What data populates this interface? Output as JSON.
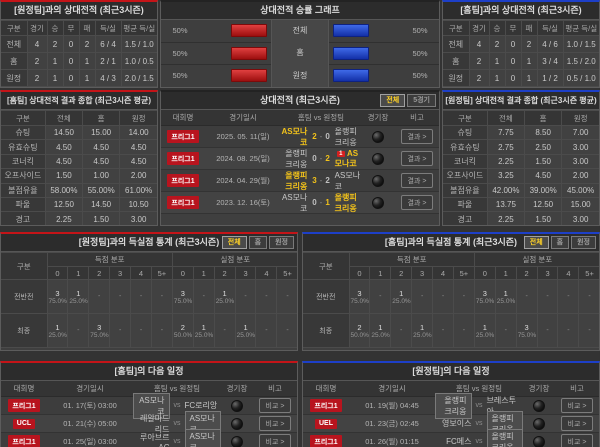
{
  "colors": {
    "home_accent": "#c41418",
    "away_accent": "#1d3fc8",
    "win_text": "#f2c21a",
    "bar_red": "#c22020",
    "bar_blue": "#2646c8"
  },
  "h2h_left": {
    "title": "[원정팀]과의 상대전적 (최근3시즌)",
    "columns": [
      "구분",
      "경기",
      "승",
      "무",
      "패",
      "득/실",
      "평균 득/실"
    ],
    "rows": [
      [
        "전체",
        "4",
        "2",
        "0",
        "2",
        "6 / 4",
        "1.5 / 1.0"
      ],
      [
        "홈",
        "2",
        "1",
        "0",
        "1",
        "2 / 1",
        "1.0 / 0.5"
      ],
      [
        "원정",
        "2",
        "1",
        "0",
        "1",
        "4 / 3",
        "2.0 / 1.5"
      ]
    ]
  },
  "win_graph": {
    "title": "상대전적 승률 그래프",
    "rows": [
      {
        "label": "전체",
        "left_pct": "50%",
        "left_val": 50,
        "right_pct": "50%",
        "right_val": 50
      },
      {
        "label": "홈",
        "left_pct": "50%",
        "left_val": 50,
        "right_pct": "50%",
        "right_val": 50
      },
      {
        "label": "원정",
        "left_pct": "50%",
        "left_val": 50,
        "right_pct": "50%",
        "right_val": 50
      }
    ]
  },
  "h2h_right": {
    "title": "[홈팀]과의 상대전적 (최근3시즌)",
    "columns": [
      "구분",
      "경기",
      "승",
      "무",
      "패",
      "득/실",
      "평균 득/실"
    ],
    "rows": [
      [
        "전체",
        "4",
        "2",
        "0",
        "2",
        "4 / 6",
        "1.0 / 1.5"
      ],
      [
        "홈",
        "2",
        "1",
        "0",
        "1",
        "3 / 4",
        "1.5 / 2.0"
      ],
      [
        "원정",
        "2",
        "1",
        "0",
        "1",
        "1 / 2",
        "0.5 / 1.0"
      ]
    ]
  },
  "stats_left": {
    "title": "[홈팀] 상대전적 결과 종합 (최근3시즌 평균)",
    "columns": [
      "구분",
      "전체",
      "홈",
      "원정"
    ],
    "rows": [
      [
        "슈팅",
        "14.50",
        "15.00",
        "14.00"
      ],
      [
        "유효슈팅",
        "4.50",
        "4.50",
        "4.50"
      ],
      [
        "코너킥",
        "4.50",
        "4.50",
        "4.50"
      ],
      [
        "오프사이드",
        "1.50",
        "1.00",
        "2.00"
      ],
      [
        "볼점유율",
        "58.00%",
        "55.00%",
        "61.00%"
      ],
      [
        "파울",
        "12.50",
        "14.50",
        "10.50"
      ],
      [
        "경고",
        "2.25",
        "1.50",
        "3.00"
      ],
      [
        "퇴장",
        "0.25",
        "0.00",
        "0.50"
      ]
    ]
  },
  "matches": {
    "title": "상대전적 (최근3시즌)",
    "tabs": [
      "전체",
      "5경기"
    ],
    "active_tab": 0,
    "columns": [
      "대회명",
      "경기일시",
      "홈팀 vs 원정팀",
      "경기장",
      "비고"
    ],
    "action_label": "결과 >",
    "rows": [
      {
        "league": "프리그1",
        "date": "2025. 05. 11(일)",
        "home": "AS모나코",
        "home_score": "2",
        "away_score": "0",
        "away": "올랭피크리옹",
        "winner": "home",
        "red_card_side": "",
        "red_card_count": ""
      },
      {
        "league": "프리그1",
        "date": "2024. 08. 25(일)",
        "home": "올랭피크리옹",
        "home_score": "0",
        "away_score": "2",
        "away": "AS모나코",
        "winner": "away",
        "red_card_side": "away",
        "red_card_count": "1"
      },
      {
        "league": "프리그1",
        "date": "2024. 04. 29(월)",
        "home": "올랭피크리옹",
        "home_score": "3",
        "away_score": "2",
        "away": "AS모나코",
        "winner": "home",
        "red_card_side": "",
        "red_card_count": ""
      },
      {
        "league": "프리그1",
        "date": "2023. 12. 16(토)",
        "home": "AS모나코",
        "home_score": "0",
        "away_score": "1",
        "away": "올랭피크리옹",
        "winner": "away",
        "red_card_side": "",
        "red_card_count": ""
      }
    ]
  },
  "stats_right": {
    "title": "[원정팀] 상대전적 결과 종합 (최근3시즌 평균)",
    "columns": [
      "구분",
      "전체",
      "홈",
      "원정"
    ],
    "rows": [
      [
        "슈팅",
        "7.75",
        "8.50",
        "7.00"
      ],
      [
        "유효슈팅",
        "2.75",
        "2.50",
        "3.00"
      ],
      [
        "코너킥",
        "2.25",
        "1.50",
        "3.00"
      ],
      [
        "오프사이드",
        "3.25",
        "4.50",
        "2.00"
      ],
      [
        "볼점유율",
        "42.00%",
        "39.00%",
        "45.00%"
      ],
      [
        "파울",
        "13.75",
        "12.50",
        "15.00"
      ],
      [
        "경고",
        "2.25",
        "1.50",
        "3.00"
      ],
      [
        "퇴장",
        "0.00",
        "0.00",
        "0.00"
      ]
    ]
  },
  "dist_left": {
    "title": "[원정팀]과의 득실점 통계 (최근3시즌)",
    "tabs": [
      "전체",
      "홈",
      "원정"
    ],
    "active_tab": 0,
    "corner_label": "구분",
    "group_labels": [
      "득점 분포",
      "실점 분포"
    ],
    "score_cols": [
      "0",
      "1",
      "2",
      "3",
      "4",
      "5+"
    ],
    "rows": [
      {
        "label": "전반전",
        "scored": [
          [
            "3",
            "75.0%"
          ],
          [
            "1",
            "25.0%"
          ],
          "-",
          "-",
          "-",
          "-"
        ],
        "conceded": [
          [
            "3",
            "75.0%"
          ],
          "-",
          [
            "1",
            "25.0%"
          ],
          "-",
          "-",
          "-"
        ]
      },
      {
        "label": "최종",
        "scored": [
          [
            "1",
            "25.0%"
          ],
          "-",
          [
            "3",
            "75.0%"
          ],
          "-",
          "-",
          "-"
        ],
        "conceded": [
          [
            "2",
            "50.0%"
          ],
          [
            "1",
            "25.0%"
          ],
          "-",
          [
            "1",
            "25.0%"
          ],
          "-",
          "-"
        ]
      }
    ]
  },
  "dist_right": {
    "title": "[홈팀]과의 득실점 통계 (최근3시즌)",
    "tabs": [
      "전체",
      "홈",
      "원정"
    ],
    "active_tab": 0,
    "corner_label": "구분",
    "group_labels": [
      "득점 분포",
      "실점 분포"
    ],
    "score_cols": [
      "0",
      "1",
      "2",
      "3",
      "4",
      "5+"
    ],
    "rows": [
      {
        "label": "전반전",
        "scored": [
          [
            "3",
            "75.0%"
          ],
          "-",
          [
            "1",
            "25.0%"
          ],
          "-",
          "-",
          "-"
        ],
        "conceded": [
          [
            "3",
            "75.0%"
          ],
          [
            "1",
            "25.0%"
          ],
          "-",
          "-",
          "-",
          "-"
        ]
      },
      {
        "label": "최종",
        "scored": [
          [
            "2",
            "50.0%"
          ],
          [
            "1",
            "25.0%"
          ],
          "-",
          [
            "1",
            "25.0%"
          ],
          "-",
          "-"
        ],
        "conceded": [
          [
            "1",
            "25.0%"
          ],
          "-",
          [
            "3",
            "75.0%"
          ],
          "-",
          "-",
          "-"
        ]
      }
    ]
  },
  "schedule_left": {
    "title": "[홈팀]의 다음 일정",
    "columns": [
      "대회명",
      "경기일시",
      "홈팀 vs 원정팀",
      "경기장",
      "비고"
    ],
    "action_label": "비교 >",
    "rows": [
      {
        "league": "프리그1",
        "datetime": "01. 17(토) 03:00",
        "home": "AS모나코",
        "away": "FC로리앙",
        "highlight": "home"
      },
      {
        "league": "UCL",
        "datetime": "01. 21(수) 05:00",
        "home": "레알마드리드",
        "away": "AS모나코",
        "highlight": "away"
      },
      {
        "league": "프리그1",
        "datetime": "01. 25(일) 03:00",
        "home": "루아브르AC",
        "away": "AS모나코",
        "highlight": "away"
      }
    ]
  },
  "schedule_right": {
    "title": "[원정팀]의 다음 일정",
    "columns": [
      "대회명",
      "경기일시",
      "홈팀 vs 원정팀",
      "경기장",
      "비고"
    ],
    "action_label": "비교 >",
    "rows": [
      {
        "league": "프리그1",
        "datetime": "01. 19(월) 04:45",
        "home": "올랭피크리옹",
        "away": "브레스투아",
        "highlight": "home"
      },
      {
        "league": "UEL",
        "datetime": "01. 23(금) 02:45",
        "home": "영보이스",
        "away": "올랭피크리옹",
        "highlight": "away"
      },
      {
        "league": "프리그1",
        "datetime": "01. 26(월) 01:15",
        "home": "FC메스",
        "away": "올랭피크리옹",
        "highlight": "away"
      }
    ]
  }
}
